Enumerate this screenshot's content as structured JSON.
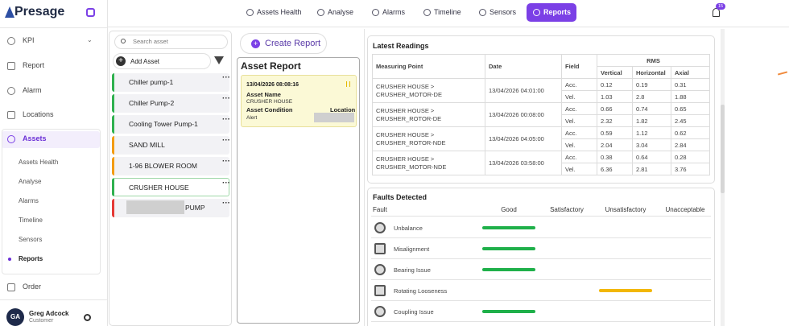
{
  "sidebar": {
    "brand": "Presage",
    "nav": [
      "KPI",
      "Report",
      "Alarm",
      "Locations",
      "Assets"
    ],
    "assets_sub": [
      "Assets Health",
      "Analyse",
      "Alarms",
      "Timeline",
      "Sensors",
      "Reports"
    ],
    "order": "Order",
    "user": {
      "initials": "GA",
      "name": "Greg Adcock",
      "role": "Customer"
    }
  },
  "topnav": {
    "tabs": [
      "Assets Health",
      "Analyse",
      "Alarms",
      "Timeline",
      "Sensors",
      "Reports"
    ],
    "active_tab": 5,
    "notification_count": 15
  },
  "asset_list": {
    "search_placeholder": "Search asset",
    "add": "Add Asset",
    "selected_index": 5,
    "items": [
      {
        "name": "Chiller pump-1",
        "color": "#2fb14f"
      },
      {
        "name": "Chiller Pump-2",
        "color": "#2fb14f"
      },
      {
        "name": "Cooling Tower Pump-1",
        "color": "#2fb14f"
      },
      {
        "name": "SAND MILL",
        "color": "#f39c12"
      },
      {
        "name": "1-96 BLOWER ROOM",
        "color": "#f39c12"
      },
      {
        "name": "CRUSHER HOUSE",
        "color": "#2fb14f"
      },
      {
        "name": "PUMP",
        "color": "#e53935"
      }
    ]
  },
  "report": {
    "create": "Create Report",
    "title": "Asset Report",
    "card": {
      "timestamp": "13/04/2026 08:08:16",
      "asset_name_label": "Asset Name",
      "asset_name": "CRUSHER HOUSE",
      "condition_label": "Asset Condition",
      "condition": "Alert",
      "location_label": "Location"
    }
  },
  "readings": {
    "title": "Latest Readings",
    "headers": {
      "point": "Measuring Point",
      "date": "Date",
      "field": "Field",
      "rms": "RMS",
      "axes": [
        "Vertical",
        "Horizontal",
        "Axial"
      ]
    },
    "rows": [
      {
        "point": [
          "CRUSHER HOUSE >",
          "CRUSHER_MOTOR-DE"
        ],
        "date": "13/04/2026 04:01:00",
        "fields": [
          {
            "field": "Acc.",
            "values": [
              "0.12",
              "0.19",
              "0.31"
            ]
          },
          {
            "field": "Vel.",
            "values": [
              "1.03",
              "2.8",
              "1.88"
            ]
          }
        ]
      },
      {
        "point": [
          "CRUSHER HOUSE >",
          "CRUSHER_ROTOR-DE"
        ],
        "date": "13/04/2026 00:08:00",
        "fields": [
          {
            "field": "Acc.",
            "values": [
              "0.66",
              "0.74",
              "0.65"
            ]
          },
          {
            "field": "Vel.",
            "values": [
              "2.32",
              "1.82",
              "2.45"
            ]
          }
        ]
      },
      {
        "point": [
          "CRUSHER HOUSE >",
          "CRUSHER_ROTOR-NDE"
        ],
        "date": "13/04/2026 04:05:00",
        "fields": [
          {
            "field": "Acc.",
            "values": [
              "0.59",
              "1.12",
              "0.62"
            ]
          },
          {
            "field": "Vel.",
            "values": [
              "2.04",
              "3.04",
              "2.84"
            ]
          }
        ]
      },
      {
        "point": [
          "CRUSHER HOUSE >",
          "CRUSHER_MOTOR-NDE"
        ],
        "date": "13/04/2026 03:58:00",
        "fields": [
          {
            "field": "Acc.",
            "values": [
              "0.38",
              "0.64",
              "0.28"
            ]
          },
          {
            "field": "Vel.",
            "values": [
              "6.36",
              "2.81",
              "3.76"
            ]
          }
        ]
      }
    ]
  },
  "faults": {
    "title": "Faults Detected",
    "columns": [
      "Fault",
      "Good",
      "Satisfactory",
      "Unsatisfactory",
      "Unacceptable"
    ],
    "rows": [
      {
        "name": "Unbalance",
        "column": 1,
        "color": "#1fb04a"
      },
      {
        "name": "Misalignment",
        "column": 1,
        "color": "#1fb04a"
      },
      {
        "name": "Bearing Issue",
        "column": 1,
        "color": "#1fb04a"
      },
      {
        "name": "Rotating Looseness",
        "column": 3,
        "color": "#f2b705"
      },
      {
        "name": "Coupling Issue",
        "column": 1,
        "color": "#1fb04a"
      }
    ]
  }
}
